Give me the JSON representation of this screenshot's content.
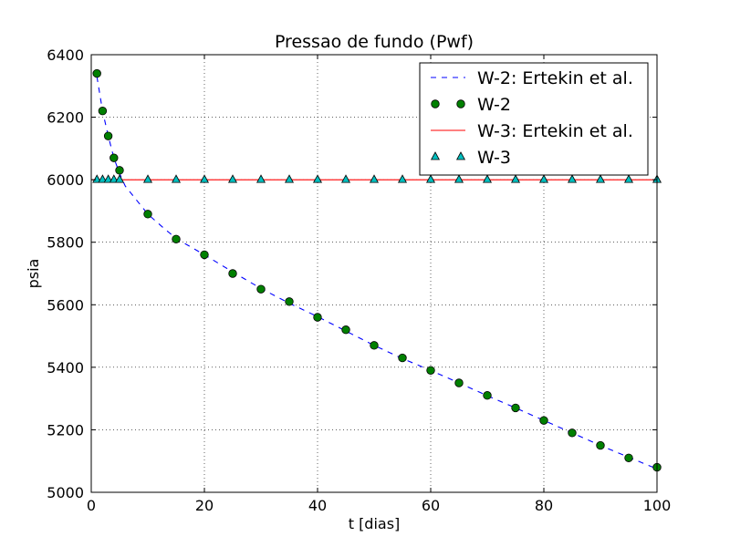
{
  "chart_data": {
    "type": "line",
    "title": "Pressao de fundo (Pwf)",
    "xlabel": "t [dias]",
    "ylabel": "psia",
    "xlim": [
      0,
      100
    ],
    "ylim": [
      5000,
      6400
    ],
    "xticks": [
      0,
      20,
      40,
      60,
      80,
      100
    ],
    "yticks": [
      5000,
      5200,
      5400,
      5600,
      5800,
      6000,
      6200,
      6400
    ],
    "grid": true,
    "legend_position": "top-right",
    "series": [
      {
        "name": "W-2: Ertekin et al.",
        "style": "dashed-line",
        "color": "#0000ff",
        "x": [
          1,
          2,
          3,
          4,
          5,
          6,
          8,
          10,
          12.5,
          15,
          20,
          25,
          30,
          35,
          40,
          45,
          50,
          55,
          60,
          65,
          70,
          75,
          80,
          85,
          90,
          95,
          100
        ],
        "y": [
          6330,
          6220,
          6140,
          6070,
          6020,
          5980,
          5935,
          5890,
          5850,
          5812,
          5760,
          5705,
          5652,
          5605,
          5562,
          5516,
          5470,
          5428,
          5390,
          5350,
          5309,
          5270,
          5230,
          5190,
          5150,
          5112,
          5075
        ]
      },
      {
        "name": "W-2",
        "style": "circle-markers",
        "color": "#008000",
        "x": [
          1,
          2,
          3,
          4,
          5,
          10,
          15,
          20,
          25,
          30,
          35,
          40,
          45,
          50,
          55,
          60,
          65,
          70,
          75,
          80,
          85,
          90,
          95,
          100
        ],
        "y": [
          6340,
          6220,
          6140,
          6070,
          6030,
          5890,
          5810,
          5760,
          5700,
          5650,
          5610,
          5560,
          5520,
          5470,
          5430,
          5390,
          5350,
          5310,
          5270,
          5230,
          5190,
          5150,
          5110,
          5080
        ]
      },
      {
        "name": "W-3: Ertekin et al.",
        "style": "solid-line",
        "color": "#ff0000",
        "x": [
          0,
          100
        ],
        "y": [
          6000,
          6000
        ]
      },
      {
        "name": "W-3",
        "style": "triangle-markers",
        "color": "#00bfbf",
        "x": [
          1,
          2,
          3,
          4,
          5,
          10,
          15,
          20,
          25,
          30,
          35,
          40,
          45,
          50,
          55,
          60,
          65,
          70,
          75,
          80,
          85,
          90,
          95,
          100
        ],
        "y": [
          6000,
          6000,
          6000,
          6000,
          6000,
          6000,
          6000,
          6000,
          6000,
          6000,
          6000,
          6000,
          6000,
          6000,
          6000,
          6000,
          6000,
          6000,
          6000,
          6000,
          6000,
          6000,
          6000,
          6000
        ]
      }
    ]
  }
}
